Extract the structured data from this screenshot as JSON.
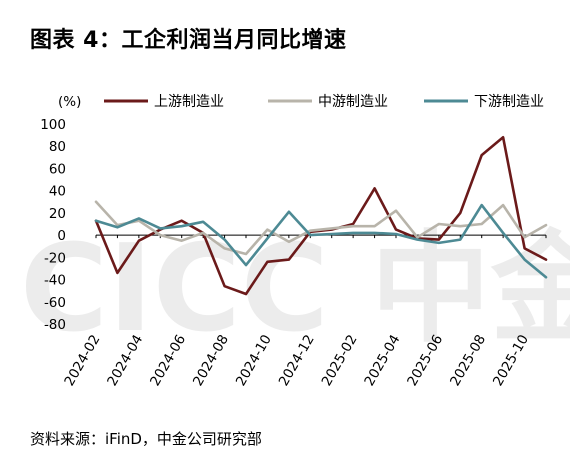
{
  "figure": {
    "title": "图表 4：工企利润当月同比增速",
    "source": "资料来源：iFinD，中金公司研究部",
    "unit_label": "(%)",
    "watermark": "CICC 中金公司"
  },
  "chart_data": {
    "type": "line",
    "title": "图表 4：工企利润当月同比增速",
    "xlabel": "",
    "ylabel": "(%)",
    "ylim": [
      -80,
      100
    ],
    "yticks": [
      100,
      80,
      60,
      40,
      20,
      0,
      -20,
      -40,
      -60,
      -80
    ],
    "grid": false,
    "legend_position": "top",
    "x": [
      "2024-02",
      "2024-03",
      "2024-04",
      "2024-05",
      "2024-06",
      "2024-07",
      "2024-08",
      "2024-09",
      "2024-10",
      "2024-11",
      "2024-12",
      "2025-01",
      "2025-02",
      "2025-03",
      "2025-04",
      "2025-05",
      "2025-06",
      "2025-07",
      "2025-08",
      "2025-09",
      "2025-10",
      "2025-11"
    ],
    "xtick_labels": [
      "2024-02",
      "2024-04",
      "2024-06",
      "2024-08",
      "2024-10",
      "2024-12",
      "2025-02",
      "2025-04",
      "2025-06",
      "2025-08",
      "2025-10"
    ],
    "series": [
      {
        "name": "上游制造业",
        "color": "#6b1a1a",
        "values": [
          13,
          -34,
          -5,
          5,
          13,
          2,
          -46,
          -53,
          -24,
          -22,
          3,
          5,
          10,
          42,
          5,
          -3,
          -4,
          20,
          72,
          88,
          -12,
          -22
        ]
      },
      {
        "name": "中游制造业",
        "color": "#b8b4aa",
        "values": [
          30,
          9,
          13,
          0,
          -5,
          2,
          -12,
          -17,
          5,
          -6,
          4,
          6,
          8,
          8,
          22,
          -2,
          10,
          8,
          10,
          27,
          -2,
          9
        ]
      },
      {
        "name": "下游制造业",
        "color": "#4d8a94",
        "values": [
          13,
          7,
          15,
          6,
          8,
          12,
          -4,
          -27,
          -3,
          21,
          0,
          1,
          2,
          2,
          1,
          -4,
          -7,
          -4,
          27,
          2,
          -22,
          -38
        ]
      }
    ]
  }
}
